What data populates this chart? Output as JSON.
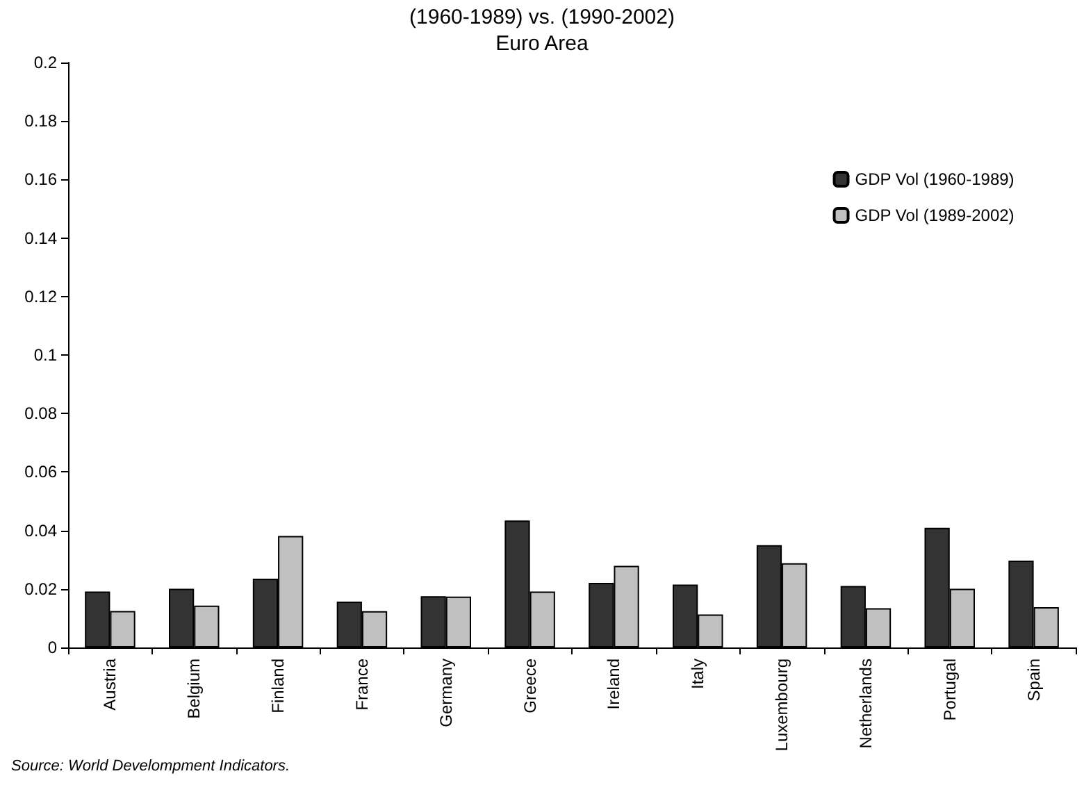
{
  "chart_data": {
    "type": "bar",
    "title": "(1960-1989) vs. (1990-2002)",
    "subtitle": "Euro Area",
    "categories": [
      "Austria",
      "Belgium",
      "Finland",
      "France",
      "Germany",
      "Greece",
      "Ireland",
      "Italy",
      "Luxembourg",
      "Netherlands",
      "Portugal",
      "Spain"
    ],
    "series": [
      {
        "name": "GDP Vol (1960-1989)",
        "color": "#333333",
        "values": [
          0.0191,
          0.0201,
          0.0235,
          0.0157,
          0.0175,
          0.0434,
          0.0221,
          0.0215,
          0.035,
          0.021,
          0.0409,
          0.0297
        ]
      },
      {
        "name": "GDP Vol (1989-2002)",
        "color": "#c0c0c0",
        "values": [
          0.0125,
          0.0143,
          0.0381,
          0.0124,
          0.0174,
          0.0191,
          0.0279,
          0.0113,
          0.0288,
          0.0134,
          0.0201,
          0.0138
        ]
      }
    ],
    "ylim": [
      0,
      0.2
    ],
    "yticks": [
      0,
      0.02,
      0.04,
      0.06,
      0.08,
      0.1,
      0.12,
      0.14,
      0.16,
      0.18,
      0.2
    ],
    "grid": false,
    "legend": "top right",
    "annotations": [
      "Source: World Develompment Indicators."
    ]
  }
}
